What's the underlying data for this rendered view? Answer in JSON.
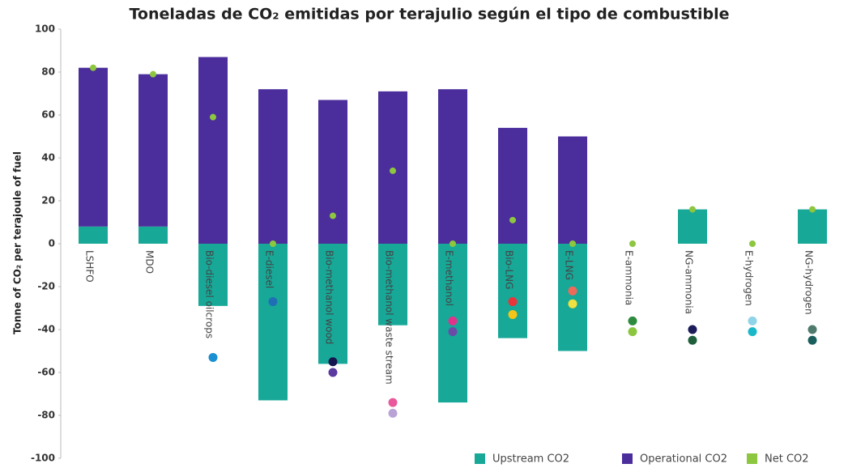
{
  "chart_data": {
    "type": "bar",
    "title": "Toneladas de CO₂ emitidas por terajulio según el tipo de combustible",
    "y_label": "Tonne of CO₂ per terajoule of fuel",
    "categories": [
      "LSHFO",
      "MDO",
      "Bio-diesel oilcrops",
      "E-diesel",
      "Bio-methanol wood",
      "Bio-methanol waste stream",
      "E-methanol",
      "Bio-LNG",
      "E-LNG",
      "E-ammonia",
      "NG-ammonia",
      "E-hydrogen",
      "NG-hydrogen"
    ],
    "series": [
      {
        "name": "Upstream CO2",
        "color": "#17a898",
        "values": [
          8,
          8,
          -29,
          -73,
          -56,
          -38,
          -74,
          -44,
          -50,
          0,
          16,
          0,
          16
        ]
      },
      {
        "name": "Operational CO2",
        "color": "#4b2e9b",
        "values": [
          74,
          71,
          87,
          72,
          67,
          71,
          72,
          54,
          50,
          0,
          0,
          0,
          0
        ]
      },
      {
        "name": "Net CO2",
        "color": "#8dc63f",
        "values": [
          82,
          79,
          59,
          0,
          13,
          34,
          0,
          11,
          0,
          0,
          16,
          0,
          16
        ]
      }
    ],
    "markers": [
      {
        "category": "Bio-diesel oilcrops",
        "value": -53,
        "color": "#1a8fd1"
      },
      {
        "category": "E-diesel",
        "value": -27,
        "color": "#1f6fb5"
      },
      {
        "category": "Bio-methanol wood",
        "value": -55,
        "color": "#15154f"
      },
      {
        "category": "Bio-methanol wood",
        "value": -60,
        "color": "#5b3aa0"
      },
      {
        "category": "Bio-methanol waste stream",
        "value": -74,
        "color": "#e8589a"
      },
      {
        "category": "Bio-methanol waste stream",
        "value": -79,
        "color": "#b9a3d6"
      },
      {
        "category": "E-methanol",
        "value": -36,
        "color": "#e0338c"
      },
      {
        "category": "E-methanol",
        "value": -41,
        "color": "#6b4aa8"
      },
      {
        "category": "Bio-LNG",
        "value": -27,
        "color": "#e8343a"
      },
      {
        "category": "Bio-LNG",
        "value": -33,
        "color": "#f5c518"
      },
      {
        "category": "E-LNG",
        "value": -22,
        "color": "#ee6a5a"
      },
      {
        "category": "E-LNG",
        "value": -28,
        "color": "#f0e040"
      },
      {
        "category": "E-ammonia",
        "value": -36,
        "color": "#2e8b3e"
      },
      {
        "category": "E-ammonia",
        "value": -41,
        "color": "#8cc63f"
      },
      {
        "category": "NG-ammonia",
        "value": -40,
        "color": "#1c1c5a"
      },
      {
        "category": "NG-ammonia",
        "value": -45,
        "color": "#1e5e3a"
      },
      {
        "category": "E-hydrogen",
        "value": -36,
        "color": "#8fd4e8"
      },
      {
        "category": "E-hydrogen",
        "value": -41,
        "color": "#1ab8c8"
      },
      {
        "category": "NG-hydrogen",
        "value": -40,
        "color": "#4f7a6e"
      },
      {
        "category": "NG-hydrogen",
        "value": -45,
        "color": "#1a5e5e"
      }
    ],
    "ylim": [
      -100,
      100
    ],
    "yticks": [
      -100,
      -80,
      -60,
      -40,
      -20,
      0,
      20,
      40,
      60,
      80,
      100
    ],
    "legend": "bottom-right"
  }
}
